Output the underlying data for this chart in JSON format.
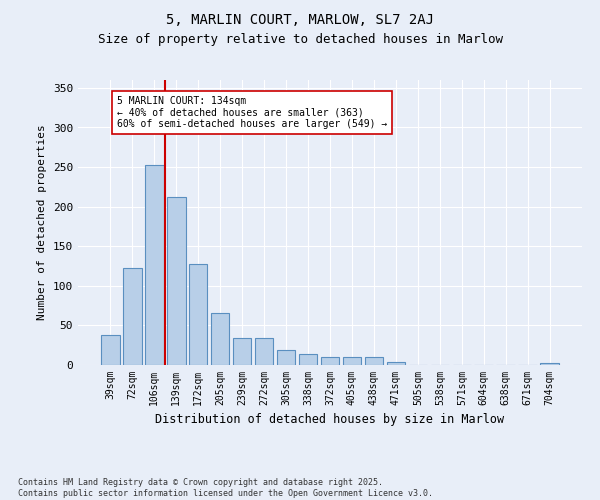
{
  "title1": "5, MARLIN COURT, MARLOW, SL7 2AJ",
  "title2": "Size of property relative to detached houses in Marlow",
  "xlabel": "Distribution of detached houses by size in Marlow",
  "ylabel": "Number of detached properties",
  "categories": [
    "39sqm",
    "72sqm",
    "106sqm",
    "139sqm",
    "172sqm",
    "205sqm",
    "239sqm",
    "272sqm",
    "305sqm",
    "338sqm",
    "372sqm",
    "405sqm",
    "438sqm",
    "471sqm",
    "505sqm",
    "538sqm",
    "571sqm",
    "604sqm",
    "638sqm",
    "671sqm",
    "704sqm"
  ],
  "values": [
    38,
    122,
    253,
    212,
    128,
    66,
    34,
    34,
    19,
    14,
    10,
    10,
    10,
    4,
    0,
    0,
    0,
    0,
    0,
    0,
    3
  ],
  "bar_color": "#b8cfe8",
  "bar_edge_color": "#5a8fc0",
  "vline_color": "#cc0000",
  "annotation_text": "5 MARLIN COURT: 134sqm\n← 40% of detached houses are smaller (363)\n60% of semi-detached houses are larger (549) →",
  "annotation_box_color": "#ffffff",
  "annotation_box_edge": "#cc0000",
  "background_color": "#e8eef8",
  "plot_bg_color": "#e8eef8",
  "footer": "Contains HM Land Registry data © Crown copyright and database right 2025.\nContains public sector information licensed under the Open Government Licence v3.0.",
  "ylim": [
    0,
    360
  ],
  "yticks": [
    0,
    50,
    100,
    150,
    200,
    250,
    300,
    350
  ]
}
